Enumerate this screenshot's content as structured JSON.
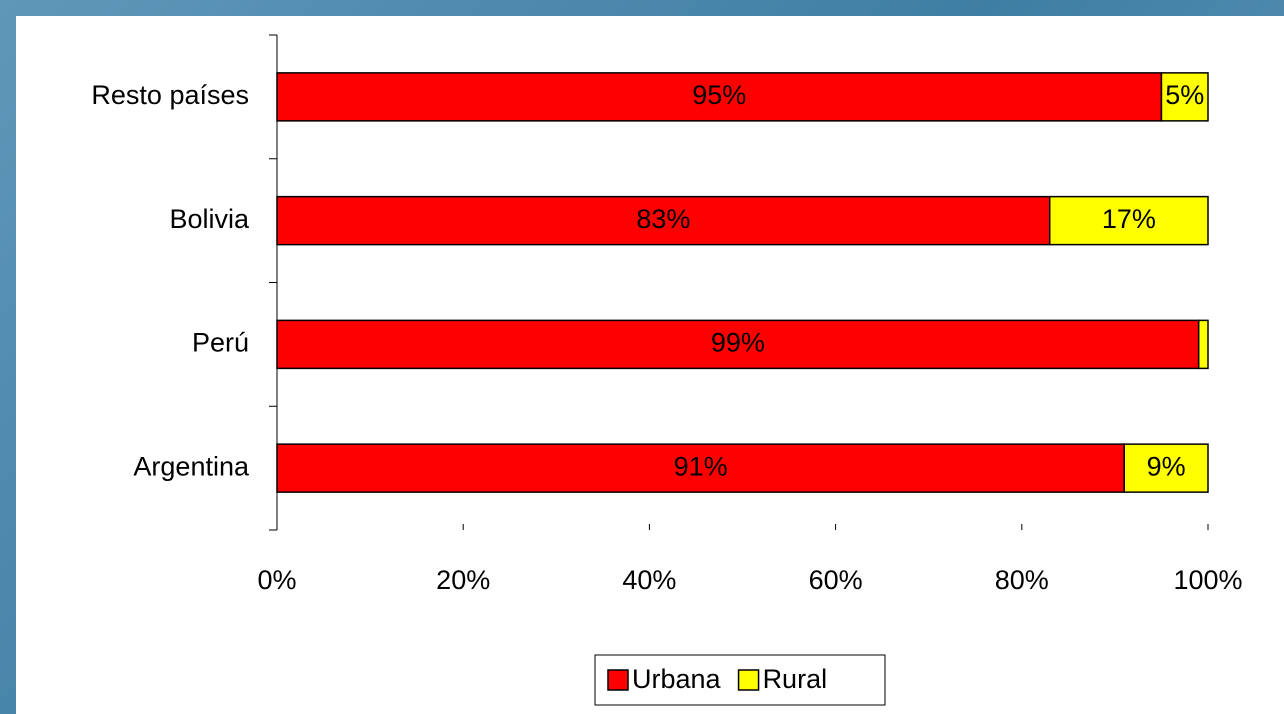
{
  "chart_data": {
    "type": "stacked_barh",
    "categories": [
      "Argentina",
      "Perú",
      "Bolivia",
      "Resto países"
    ],
    "series": [
      {
        "name": "Urbana",
        "color": "#ff0000",
        "values": [
          91,
          99,
          83,
          95
        ],
        "value_labels": [
          "91%",
          "99%",
          "83%",
          "95%"
        ]
      },
      {
        "name": "Rural",
        "color": "#ffff00",
        "values": [
          9,
          1,
          17,
          5
        ],
        "value_labels": [
          "9%",
          null,
          "17%",
          "5%"
        ]
      }
    ],
    "xlim": [
      0,
      100
    ],
    "xticks": [
      {
        "value": 0,
        "label": "0%"
      },
      {
        "value": 20,
        "label": "20%"
      },
      {
        "value": 40,
        "label": "40%"
      },
      {
        "value": 60,
        "label": "60%"
      },
      {
        "value": 80,
        "label": "80%"
      },
      {
        "value": 100,
        "label": "100%"
      }
    ],
    "legend": "bottom"
  }
}
